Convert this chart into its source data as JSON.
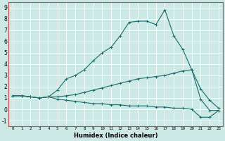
{
  "xlabel": "Humidex (Indice chaleur)",
  "background_color": "#cce9e5",
  "grid_color": "#ffffff",
  "line_color": "#1a6b6a",
  "xlim": [
    -0.5,
    23.5
  ],
  "ylim": [
    -1.5,
    9.5
  ],
  "yticks": [
    -1,
    0,
    1,
    2,
    3,
    4,
    5,
    6,
    7,
    8,
    9
  ],
  "xtick_labels": [
    "0",
    "1",
    "2",
    "3",
    "4",
    "5",
    "6",
    "7",
    "8",
    "9",
    "10",
    "11",
    "12",
    "13",
    "14",
    "15",
    "16",
    "17",
    "18",
    "19",
    "20",
    "21",
    "22",
    "23"
  ],
  "lines": [
    [
      1.2,
      1.2,
      1.1,
      1.0,
      1.1,
      1.7,
      2.7,
      3.0,
      3.5,
      4.3,
      5.0,
      5.5,
      6.5,
      7.7,
      7.8,
      7.8,
      7.5,
      8.8,
      6.5,
      5.3,
      3.5,
      1.8,
      0.8,
      0.1
    ],
    [
      1.2,
      1.2,
      1.1,
      1.0,
      1.1,
      1.1,
      1.2,
      1.3,
      1.5,
      1.7,
      1.9,
      2.1,
      2.3,
      2.5,
      2.7,
      2.8,
      2.9,
      3.0,
      3.2,
      3.4,
      3.5,
      0.9,
      -0.1,
      -0.1
    ],
    [
      1.2,
      1.2,
      1.1,
      1.0,
      1.1,
      0.9,
      0.8,
      0.7,
      0.6,
      0.5,
      0.5,
      0.4,
      0.4,
      0.3,
      0.3,
      0.3,
      0.2,
      0.2,
      0.1,
      0.1,
      0.0,
      -0.7,
      -0.7,
      -0.1
    ]
  ],
  "figsize": [
    3.2,
    2.0
  ],
  "dpi": 100
}
